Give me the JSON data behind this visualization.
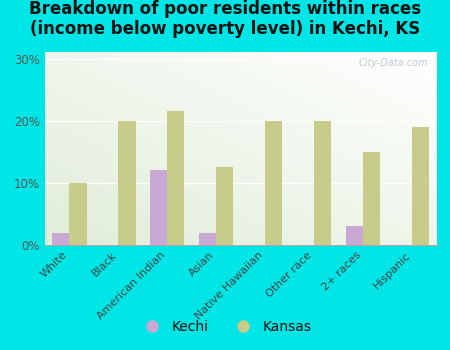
{
  "title": "Breakdown of poor residents within races\n(income below poverty level) in Kechi, KS",
  "categories": [
    "White",
    "Black",
    "American Indian",
    "Asian",
    "Native Hawaiian",
    "Other race",
    "2+ races",
    "Hispanic"
  ],
  "kechi_values": [
    2,
    0,
    12,
    2,
    0,
    0,
    3,
    0
  ],
  "kansas_values": [
    10,
    20,
    21.5,
    12.5,
    20,
    20,
    15,
    19
  ],
  "kechi_color": "#c9a8d4",
  "kansas_color": "#c8cc8a",
  "background_color": "#00e5e5",
  "ylim": [
    0,
    31
  ],
  "yticks": [
    0,
    10,
    20,
    30
  ],
  "ytick_labels": [
    "0%",
    "10%",
    "20%",
    "30%"
  ],
  "title_fontsize": 12,
  "bar_width": 0.35,
  "watermark": "City-Data.com"
}
